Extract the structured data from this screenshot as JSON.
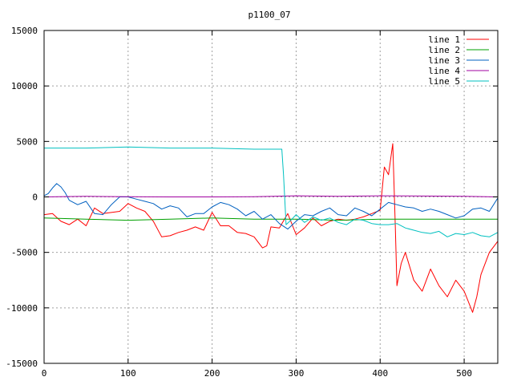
{
  "chart_data": {
    "type": "line",
    "title": "p1100_07",
    "xlabel": "",
    "ylabel": "",
    "xlim": [
      0,
      540
    ],
    "ylim": [
      -15000,
      15000
    ],
    "xticks": [
      0,
      100,
      200,
      300,
      400,
      500
    ],
    "yticks": [
      -15000,
      -10000,
      -5000,
      0,
      5000,
      10000,
      15000
    ],
    "grid": true,
    "legend_position": "top-right",
    "series": [
      {
        "name": "line 1",
        "color": "#ff0000",
        "x": [
          0,
          10,
          20,
          30,
          40,
          50,
          60,
          70,
          80,
          90,
          100,
          110,
          120,
          130,
          140,
          150,
          160,
          170,
          180,
          190,
          200,
          210,
          220,
          230,
          240,
          250,
          260,
          265,
          270,
          280,
          290,
          300,
          310,
          320,
          330,
          340,
          350,
          360,
          370,
          380,
          390,
          400,
          405,
          410,
          415,
          418,
          420,
          425,
          430,
          440,
          450,
          460,
          470,
          480,
          490,
          500,
          510,
          515,
          520,
          530,
          540
        ],
        "y": [
          -1600,
          -1500,
          -2200,
          -2500,
          -2000,
          -2600,
          -1000,
          -1500,
          -1400,
          -1300,
          -600,
          -1000,
          -1300,
          -2200,
          -3600,
          -3500,
          -3200,
          -3000,
          -2700,
          -3000,
          -1400,
          -2600,
          -2600,
          -3200,
          -3300,
          -3600,
          -4600,
          -4400,
          -2700,
          -2800,
          -1500,
          -3400,
          -2800,
          -1900,
          -2600,
          -2200,
          -2000,
          -2100,
          -2000,
          -1800,
          -1500,
          -1200,
          2700,
          2000,
          4800,
          -2500,
          -8000,
          -6000,
          -5000,
          -7500,
          -8500,
          -6500,
          -8000,
          -9000,
          -7500,
          -8500,
          -10400,
          -9000,
          -7000,
          -5000,
          -4000
        ]
      },
      {
        "name": "line 2",
        "color": "#00a000",
        "x": [
          0,
          50,
          100,
          150,
          200,
          250,
          300,
          350,
          400,
          450,
          500,
          540
        ],
        "y": [
          -1900,
          -2000,
          -2100,
          -2000,
          -1900,
          -2000,
          -2000,
          -2100,
          -2000,
          -2000,
          -2000,
          -2000
        ]
      },
      {
        "name": "line 3",
        "color": "#0060c0",
        "x": [
          0,
          5,
          10,
          15,
          20,
          25,
          30,
          40,
          50,
          60,
          70,
          80,
          90,
          100,
          110,
          120,
          130,
          140,
          150,
          160,
          170,
          180,
          190,
          200,
          210,
          220,
          230,
          240,
          250,
          260,
          270,
          280,
          290,
          300,
          310,
          320,
          330,
          340,
          350,
          360,
          370,
          380,
          390,
          400,
          410,
          420,
          430,
          440,
          450,
          460,
          470,
          480,
          490,
          500,
          510,
          520,
          530,
          540
        ],
        "y": [
          100,
          300,
          800,
          1200,
          900,
          400,
          -300,
          -700,
          -400,
          -1500,
          -1600,
          -700,
          0,
          0,
          -200,
          -400,
          -600,
          -1100,
          -800,
          -1000,
          -1800,
          -1500,
          -1500,
          -900,
          -500,
          -700,
          -1100,
          -1700,
          -1300,
          -2000,
          -1600,
          -2400,
          -2900,
          -2200,
          -1600,
          -1700,
          -1300,
          -1000,
          -1600,
          -1700,
          -1000,
          -1300,
          -1700,
          -1100,
          -500,
          -700,
          -900,
          -1000,
          -1300,
          -1100,
          -1300,
          -1600,
          -1900,
          -1700,
          -1100,
          -1000,
          -1300,
          -100
        ]
      },
      {
        "name": "line 4",
        "color": "#a000a0",
        "x": [
          0,
          50,
          100,
          150,
          200,
          250,
          300,
          350,
          400,
          450,
          500,
          540
        ],
        "y": [
          0,
          50,
          20,
          0,
          0,
          20,
          100,
          50,
          100,
          80,
          50,
          0
        ]
      },
      {
        "name": "line 5",
        "color": "#00c0c0",
        "x": [
          0,
          50,
          100,
          150,
          200,
          250,
          283,
          285,
          288,
          295,
          300,
          310,
          320,
          330,
          340,
          350,
          360,
          370,
          380,
          390,
          400,
          410,
          420,
          430,
          440,
          450,
          460,
          470,
          480,
          490,
          500,
          510,
          520,
          530,
          540
        ],
        "y": [
          4400,
          4400,
          4500,
          4400,
          4400,
          4300,
          4300,
          2000,
          -2500,
          -2000,
          -1600,
          -2300,
          -1800,
          -2100,
          -1900,
          -2300,
          -2500,
          -2000,
          -2100,
          -2400,
          -2500,
          -2500,
          -2400,
          -2800,
          -3000,
          -3200,
          -3300,
          -3100,
          -3600,
          -3300,
          -3400,
          -3200,
          -3500,
          -3600,
          -3200
        ]
      }
    ]
  }
}
